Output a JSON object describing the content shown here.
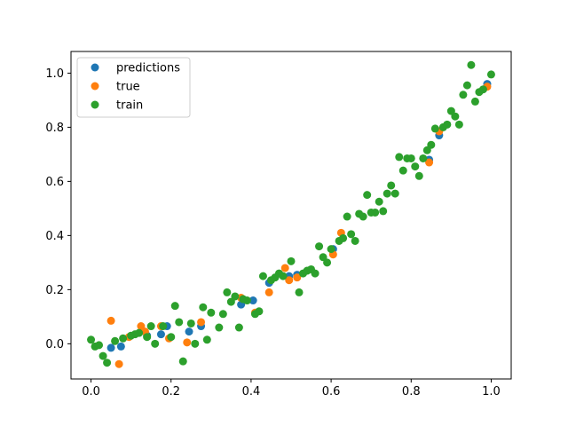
{
  "chart_data": {
    "type": "scatter",
    "title": "",
    "xlabel": "",
    "ylabel": "",
    "xlim": [
      -0.05,
      1.05
    ],
    "ylim": [
      -0.13,
      1.08
    ],
    "xticks": [
      0.0,
      0.2,
      0.4,
      0.6,
      0.8,
      1.0
    ],
    "yticks": [
      0.0,
      0.2,
      0.4,
      0.6,
      0.8,
      1.0
    ],
    "xtick_labels": [
      "0.0",
      "0.2",
      "0.4",
      "0.6",
      "0.8",
      "1.0"
    ],
    "ytick_labels": [
      "0.0",
      "0.2",
      "0.4",
      "0.6",
      "0.8",
      "1.0"
    ],
    "grid": false,
    "legend": "upper-left",
    "series": [
      {
        "name": "predictions",
        "color": "#1f77b4",
        "x": [
          0.05,
          0.075,
          0.14,
          0.175,
          0.19,
          0.245,
          0.275,
          0.375,
          0.405,
          0.445,
          0.495,
          0.515,
          0.605,
          0.845,
          0.87,
          0.99
        ],
        "y": [
          -0.015,
          -0.01,
          0.03,
          0.035,
          0.065,
          0.045,
          0.065,
          0.145,
          0.16,
          0.225,
          0.25,
          0.255,
          0.35,
          0.68,
          0.77,
          0.96
        ]
      },
      {
        "name": "true",
        "color": "#ff7f0e",
        "x": [
          0.05,
          0.07,
          0.095,
          0.125,
          0.135,
          0.175,
          0.195,
          0.24,
          0.275,
          0.375,
          0.41,
          0.445,
          0.485,
          0.495,
          0.515,
          0.605,
          0.625,
          0.845,
          0.87,
          0.99
        ],
        "y": [
          0.085,
          -0.075,
          0.025,
          0.065,
          0.045,
          0.065,
          0.02,
          0.005,
          0.08,
          0.17,
          0.115,
          0.19,
          0.28,
          0.235,
          0.245,
          0.33,
          0.41,
          0.67,
          0.785,
          0.95
        ]
      },
      {
        "name": "train",
        "color": "#2ca02c",
        "x": [
          0.0,
          0.01,
          0.02,
          0.03,
          0.04,
          0.06,
          0.08,
          0.1,
          0.11,
          0.12,
          0.14,
          0.15,
          0.16,
          0.18,
          0.2,
          0.21,
          0.22,
          0.23,
          0.25,
          0.26,
          0.28,
          0.29,
          0.3,
          0.32,
          0.33,
          0.34,
          0.35,
          0.36,
          0.37,
          0.38,
          0.39,
          0.41,
          0.42,
          0.43,
          0.45,
          0.46,
          0.47,
          0.48,
          0.5,
          0.52,
          0.53,
          0.54,
          0.55,
          0.56,
          0.57,
          0.58,
          0.59,
          0.6,
          0.62,
          0.63,
          0.64,
          0.65,
          0.66,
          0.67,
          0.68,
          0.69,
          0.7,
          0.71,
          0.72,
          0.73,
          0.74,
          0.75,
          0.76,
          0.77,
          0.78,
          0.79,
          0.8,
          0.81,
          0.82,
          0.83,
          0.84,
          0.85,
          0.86,
          0.88,
          0.89,
          0.9,
          0.91,
          0.92,
          0.93,
          0.94,
          0.95,
          0.96,
          0.97,
          0.98,
          1.0
        ],
        "y": [
          0.015,
          -0.01,
          -0.005,
          -0.045,
          -0.07,
          0.01,
          0.02,
          0.03,
          0.035,
          0.04,
          0.025,
          0.065,
          0.0,
          0.065,
          0.025,
          0.14,
          0.08,
          -0.065,
          0.075,
          0.0,
          0.135,
          0.015,
          0.115,
          0.06,
          0.11,
          0.19,
          0.155,
          0.175,
          0.06,
          0.165,
          0.16,
          0.11,
          0.12,
          0.25,
          0.235,
          0.245,
          0.26,
          0.25,
          0.305,
          0.19,
          0.26,
          0.27,
          0.275,
          0.26,
          0.36,
          0.32,
          0.3,
          0.35,
          0.38,
          0.39,
          0.47,
          0.405,
          0.38,
          0.48,
          0.47,
          0.55,
          0.485,
          0.485,
          0.525,
          0.49,
          0.555,
          0.585,
          0.555,
          0.69,
          0.64,
          0.685,
          0.685,
          0.655,
          0.62,
          0.685,
          0.715,
          0.735,
          0.795,
          0.8,
          0.81,
          0.86,
          0.84,
          0.81,
          0.92,
          0.955,
          1.03,
          0.895,
          0.93,
          0.94,
          0.995
        ]
      }
    ]
  }
}
